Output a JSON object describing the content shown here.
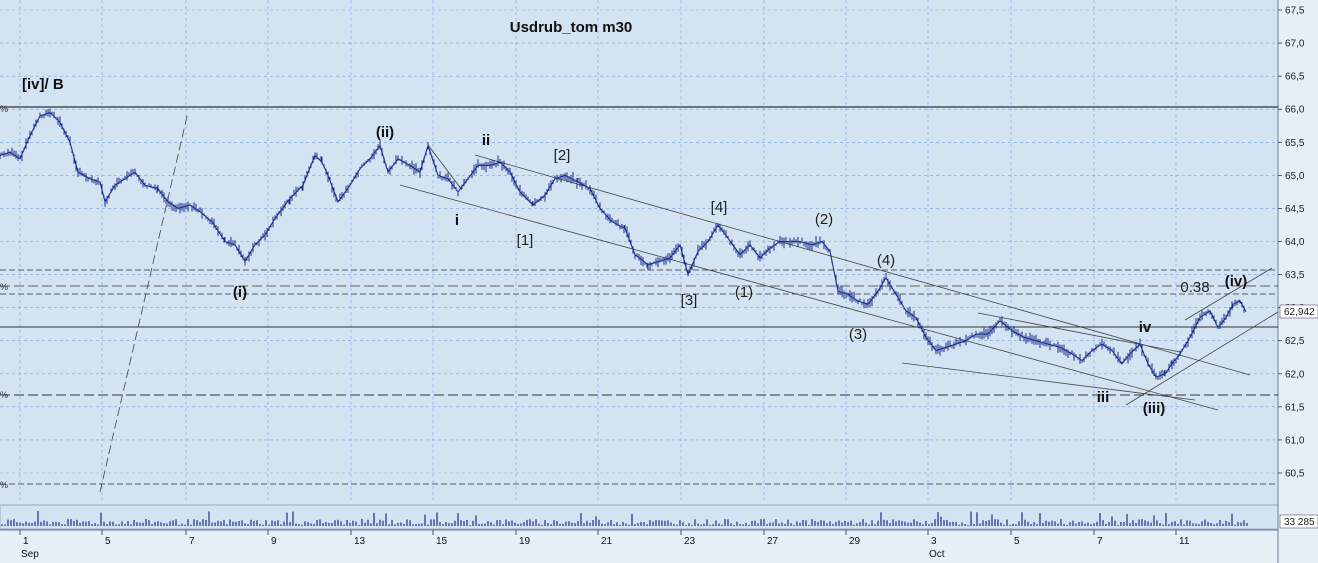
{
  "chart_data": {
    "type": "line",
    "title": "Usdrub_tom m30",
    "y_ticks": [
      "67,5",
      "67,0",
      "66,5",
      "66,0",
      "65,5",
      "65,0",
      "64,5",
      "64,0",
      "63,5",
      "63,0",
      "62,5",
      "62,0",
      "61,5",
      "61,0",
      "60,5"
    ],
    "ylim": [
      60.2,
      67.5
    ],
    "x_ticks": [
      "1",
      "5",
      "7",
      "9",
      "13",
      "15",
      "19",
      "21",
      "23",
      "27",
      "29",
      "3",
      "5",
      "7",
      "11"
    ],
    "x_month_labels": [
      "Sep",
      "Oct"
    ],
    "last_price": "62,942",
    "volume_label": "33 285",
    "series_points": [
      [
        0,
        65.3
      ],
      [
        10,
        65.35
      ],
      [
        20,
        65.25
      ],
      [
        30,
        65.6
      ],
      [
        40,
        65.9
      ],
      [
        50,
        65.95
      ],
      [
        60,
        65.8
      ],
      [
        70,
        65.5
      ],
      [
        78,
        65.05
      ],
      [
        90,
        64.95
      ],
      [
        100,
        64.9
      ],
      [
        105,
        64.6
      ],
      [
        115,
        64.85
      ],
      [
        125,
        64.95
      ],
      [
        135,
        65.05
      ],
      [
        145,
        64.85
      ],
      [
        158,
        64.8
      ],
      [
        168,
        64.6
      ],
      [
        178,
        64.5
      ],
      [
        190,
        64.55
      ],
      [
        200,
        64.45
      ],
      [
        212,
        64.3
      ],
      [
        225,
        64.0
      ],
      [
        235,
        63.95
      ],
      [
        245,
        63.7
      ],
      [
        255,
        63.95
      ],
      [
        265,
        64.1
      ],
      [
        275,
        64.35
      ],
      [
        290,
        64.65
      ],
      [
        303,
        64.85
      ],
      [
        315,
        65.3
      ],
      [
        322,
        65.2
      ],
      [
        328,
        65.0
      ],
      [
        338,
        64.6
      ],
      [
        350,
        64.85
      ],
      [
        360,
        65.1
      ],
      [
        370,
        65.25
      ],
      [
        380,
        65.45
      ],
      [
        388,
        65.05
      ],
      [
        398,
        65.25
      ],
      [
        410,
        65.15
      ],
      [
        420,
        65.05
      ],
      [
        428,
        65.45
      ],
      [
        438,
        65.0
      ],
      [
        448,
        64.95
      ],
      [
        458,
        64.75
      ],
      [
        468,
        64.95
      ],
      [
        478,
        65.15
      ],
      [
        490,
        65.15
      ],
      [
        500,
        65.2
      ],
      [
        510,
        65.05
      ],
      [
        520,
        64.75
      ],
      [
        533,
        64.55
      ],
      [
        545,
        64.7
      ],
      [
        555,
        64.95
      ],
      [
        565,
        65.0
      ],
      [
        578,
        64.9
      ],
      [
        590,
        64.8
      ],
      [
        600,
        64.5
      ],
      [
        612,
        64.3
      ],
      [
        625,
        64.2
      ],
      [
        635,
        63.8
      ],
      [
        648,
        63.65
      ],
      [
        660,
        63.7
      ],
      [
        670,
        63.75
      ],
      [
        680,
        63.95
      ],
      [
        688,
        63.5
      ],
      [
        698,
        63.85
      ],
      [
        708,
        64.0
      ],
      [
        718,
        64.25
      ],
      [
        728,
        64.05
      ],
      [
        740,
        63.8
      ],
      [
        750,
        63.95
      ],
      [
        760,
        63.75
      ],
      [
        770,
        63.9
      ],
      [
        780,
        64.0
      ],
      [
        790,
        64.0
      ],
      [
        800,
        64.0
      ],
      [
        812,
        63.95
      ],
      [
        822,
        64.0
      ],
      [
        830,
        63.85
      ],
      [
        838,
        63.25
      ],
      [
        848,
        63.2
      ],
      [
        858,
        63.1
      ],
      [
        868,
        63.05
      ],
      [
        878,
        63.25
      ],
      [
        886,
        63.45
      ],
      [
        896,
        63.2
      ],
      [
        906,
        62.95
      ],
      [
        916,
        62.85
      ],
      [
        926,
        62.55
      ],
      [
        936,
        62.35
      ],
      [
        946,
        62.4
      ],
      [
        956,
        62.45
      ],
      [
        966,
        62.5
      ],
      [
        976,
        62.6
      ],
      [
        988,
        62.6
      ],
      [
        1000,
        62.8
      ],
      [
        1012,
        62.65
      ],
      [
        1024,
        62.55
      ],
      [
        1036,
        62.5
      ],
      [
        1048,
        62.45
      ],
      [
        1060,
        62.4
      ],
      [
        1072,
        62.3
      ],
      [
        1082,
        62.2
      ],
      [
        1092,
        62.35
      ],
      [
        1102,
        62.45
      ],
      [
        1112,
        62.35
      ],
      [
        1122,
        62.15
      ],
      [
        1130,
        62.3
      ],
      [
        1140,
        62.45
      ],
      [
        1148,
        62.15
      ],
      [
        1156,
        61.95
      ],
      [
        1165,
        62.0
      ],
      [
        1172,
        62.15
      ],
      [
        1180,
        62.3
      ],
      [
        1190,
        62.55
      ],
      [
        1200,
        62.85
      ],
      [
        1210,
        62.95
      ],
      [
        1218,
        62.7
      ],
      [
        1226,
        62.85
      ],
      [
        1233,
        63.05
      ],
      [
        1240,
        63.1
      ],
      [
        1246,
        62.94
      ]
    ]
  },
  "wave_labels": {
    "iv_b": "[iv]/ B",
    "i_paren": "(i)",
    "ii_paren": "(ii)",
    "ii": "ii",
    "i": "i",
    "b2": "[2]",
    "b1": "[1]",
    "b4": "[4]",
    "b3": "[3]",
    "p1": "(1)",
    "p2": "(2)",
    "p4": "(4)",
    "p3": "(3)",
    "iv": "iv",
    "iii": "iii",
    "iii_paren": "(iii)",
    "iv_paren": "(iv)",
    "fib": "0.38"
  },
  "pct_marks": [
    "%",
    "%",
    "%",
    "%"
  ],
  "colors": {
    "background": "#d4e3f2",
    "series": "#1c2e8c",
    "grid": "#7aa0d8",
    "lines": "#333333"
  }
}
